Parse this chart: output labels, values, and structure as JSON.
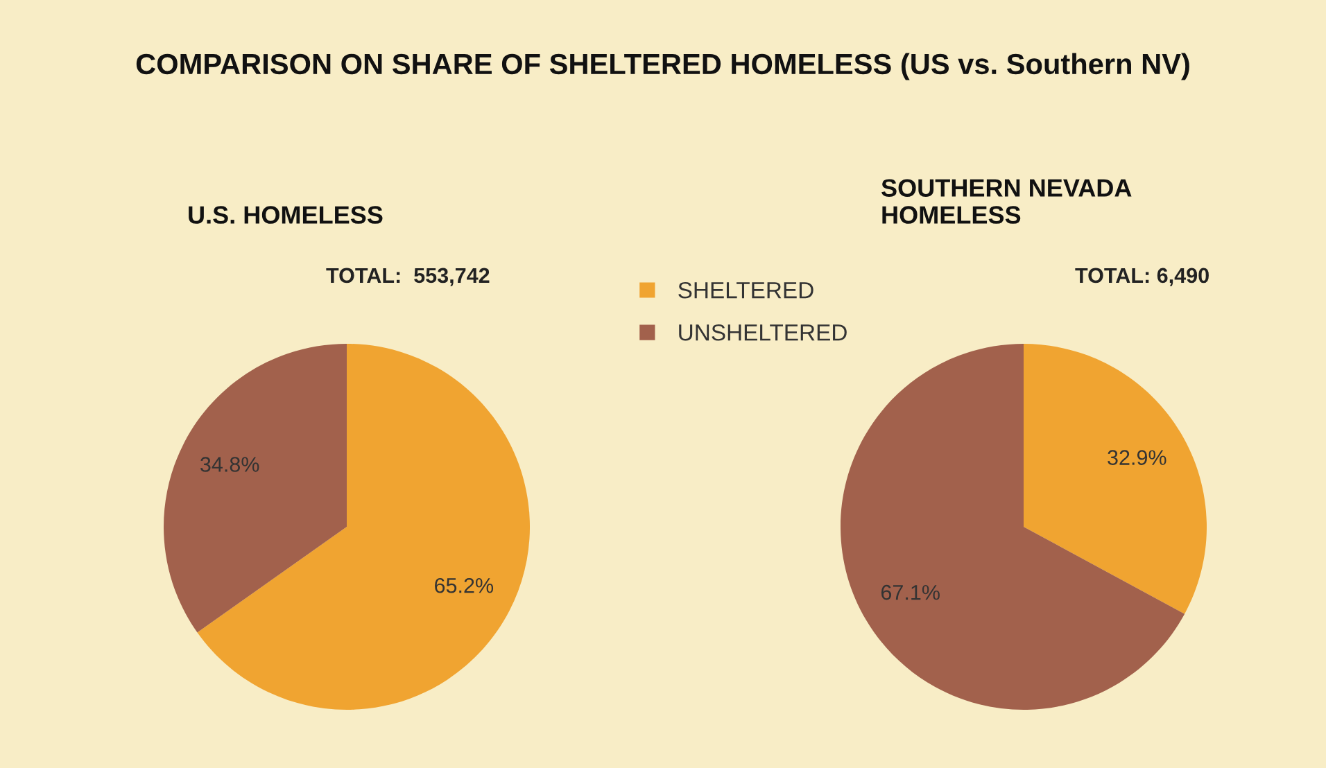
{
  "chart_data": [
    {
      "type": "pie",
      "title": "U.S. HOMELESS",
      "annotations": [
        "COMPARISON ON SHARE OF SHELTERED HOMELESS (US vs. Southern NV)",
        "TOTAL:  553,742"
      ],
      "categories": [
        "SHELTERED",
        "UNSHELTERED"
      ],
      "values": [
        65.2,
        34.8
      ],
      "value_labels": [
        "65.2%",
        "34.8%"
      ],
      "colors": [
        "#f0a431",
        "#a2614c"
      ],
      "legend": "right"
    },
    {
      "type": "pie",
      "title": "SOUTHERN NEVADA\nHOMELESS",
      "annotations": [
        "TOTAL: 6,490"
      ],
      "categories": [
        null,
        null
      ],
      "values": [
        32.9,
        67.1
      ],
      "value_labels": [
        "32.9%",
        "67.1%"
      ],
      "colors": [
        "#f0a431",
        "#a2614c"
      ]
    }
  ]
}
